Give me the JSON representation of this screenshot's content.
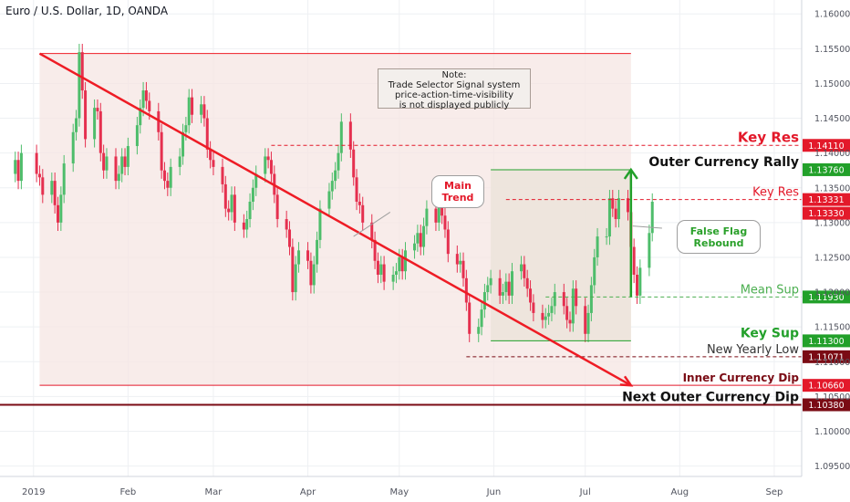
{
  "header": {
    "symbol_title": "Euro / U.S. Dollar, 1D, OANDA"
  },
  "colors": {
    "background": "#ffffff",
    "grid": "#eef0f3",
    "up_candle": "#4ebd6b",
    "down_candle": "#e5304f",
    "trend_line": "#ee1c25",
    "rally_green": "#22a02a",
    "range_box": "#f6e5e3",
    "rally_box": "#ece4dc"
  },
  "note_box": {
    "lines": [
      "Note:",
      "Trade Selector Signal system",
      "price-action-time-visibility",
      "is not displayed publicly"
    ]
  },
  "callouts": {
    "main_trend": [
      "Main",
      "Trend"
    ],
    "false_flag": [
      "False Flag",
      "Rebound"
    ]
  },
  "chart_data": {
    "type": "candlestick",
    "title": "Euro / U.S. Dollar, 1D, OANDA",
    "x_axis": {
      "tick_labels": [
        "2019",
        "Feb",
        "Mar",
        "Apr",
        "May",
        "Jun",
        "Jul",
        "Aug",
        "Sep"
      ],
      "range": [
        "2018-12-21",
        "2019-09-10"
      ]
    },
    "y_axis": {
      "range": [
        1.0935,
        1.162
      ],
      "tick_labels": [
        "1.16000",
        "1.15500",
        "1.15000",
        "1.14500",
        "1.14000",
        "1.13500",
        "1.13000",
        "1.12500",
        "1.12000",
        "1.11500",
        "1.11000",
        "1.10500",
        "1.10000",
        "1.09500"
      ]
    },
    "grid": true,
    "candles_close": [
      1.1365,
      1.134,
      1.136,
      1.1325,
      1.13,
      1.134,
      1.1385,
      1.143,
      1.145,
      1.1545,
      1.149,
      1.142,
      1.1465,
      1.146,
      1.14,
      1.1375,
      1.1395,
      1.136,
      1.137,
      1.1395,
      1.138,
      1.141,
      1.144,
      1.1465,
      1.149,
      1.1475,
      1.146,
      1.143,
      1.1375,
      1.136,
      1.135,
      1.138,
      1.1395,
      1.143,
      1.144,
      1.148,
      1.1455,
      1.147,
      1.145,
      1.1405,
      1.139,
      1.138,
      1.1355,
      1.132,
      1.1315,
      1.134,
      1.13,
      1.129,
      1.1305,
      1.133,
      1.135,
      1.137,
      1.1395,
      1.139,
      1.137,
      1.134,
      1.1305,
      1.129,
      1.1265,
      1.12,
      1.124,
      1.126,
      1.1245,
      1.121,
      1.124,
      1.1275,
      1.132,
      1.1345,
      1.136,
      1.1375,
      1.14,
      1.1445,
      1.1405,
      1.1365,
      1.133,
      1.1325,
      1.13,
      1.1275,
      1.1245,
      1.1225,
      1.124,
      1.1215,
      1.1225,
      1.123,
      1.125,
      1.123,
      1.126,
      1.127,
      1.1285,
      1.1265,
      1.1295,
      1.132,
      1.13,
      1.133,
      1.131,
      1.129,
      1.1255,
      1.124,
      1.1245,
      1.122,
      1.1185,
      1.114,
      1.115,
      1.1175,
      1.12,
      1.121,
      1.122,
      1.1195,
      1.12,
      1.1215,
      1.1195,
      1.123,
      1.124,
      1.122,
      1.1205,
      1.1185,
      1.117,
      1.116,
      1.1165,
      1.117,
      1.118,
      1.12,
      1.118,
      1.116,
      1.1155,
      1.1205,
      1.118,
      1.114,
      1.117,
      1.121,
      1.125,
      1.128,
      1.128,
      1.1335,
      1.132,
      1.1305,
      1.1335,
      1.1315,
      1.1265,
      1.1225,
      1.1195,
      1.1235,
      1.1285,
      1.133
    ],
    "levels": [
      {
        "value": 1.1411,
        "label": "Key Res",
        "price_label": "1.14110",
        "color": "#e3192a",
        "style": "dashed"
      },
      {
        "value": 1.1376,
        "label": "Outer Currency Rally",
        "price_label": "1.13760",
        "color": "#22a02a",
        "style": "solid"
      },
      {
        "value": 1.13331,
        "label": "Key Res",
        "price_label": "1.13331",
        "color": "#e3192a",
        "style": "dashed",
        "extra_price_label": "1.13330"
      },
      {
        "value": 1.1193,
        "label": "Mean Sup",
        "price_label": "1.11930",
        "color": "#4caf50",
        "style": "dashed"
      },
      {
        "value": 1.113,
        "label": "Key Sup",
        "price_label": "1.11300",
        "color": "#22a02a",
        "style": "solid"
      },
      {
        "value": 1.11071,
        "label": "New Yearly Low",
        "price_label": "1.11071",
        "color": "#7a0b14",
        "style": "dashed"
      },
      {
        "value": 1.1066,
        "label": "Inner Currency Dip",
        "price_label": "1.10660",
        "color": "#e3192a",
        "style": "solid"
      },
      {
        "value": 1.1038,
        "label": "Next Outer Currency Dip",
        "price_label": "1.10380",
        "color": "#7a0b14",
        "style": "solid"
      }
    ],
    "range_box": {
      "from": "2019-01-03",
      "to": "2019-07-16",
      "top": 1.1543,
      "bottom": 1.1066
    },
    "rally_box": {
      "from": "2019-05-31",
      "to": "2019-07-16",
      "top": 1.1376,
      "bottom": 1.113
    },
    "trend_line": {
      "from_date": "2019-01-03",
      "from_value": 1.1543,
      "to_date": "2019-07-16",
      "to_value": 1.1066
    }
  }
}
